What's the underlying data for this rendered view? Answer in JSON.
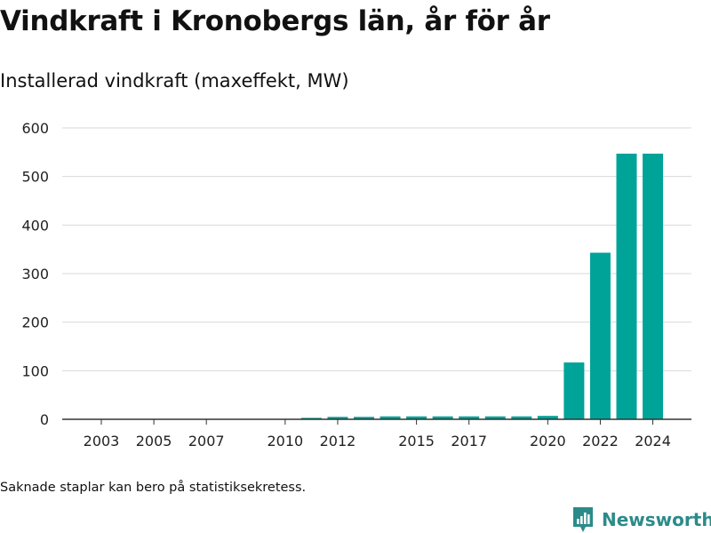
{
  "title": "Vindkraft i Kronobergs län, år för år",
  "subtitle": "Installerad vindkraft (maxeffekt, MW)",
  "note": "Saknade staplar kan bero på statistiksekretess.",
  "brand": {
    "name": "Newsworthy"
  },
  "colors": {
    "bar": "#00a398",
    "grid": "#d9d9d9",
    "axis": "#333333",
    "text": "#222222",
    "brand": "#2b8b8a"
  },
  "chart_data": {
    "type": "bar",
    "categories": [
      "2003",
      "2004",
      "2005",
      "2006",
      "2007",
      "2008",
      "2009",
      "2010",
      "2011",
      "2012",
      "2013",
      "2014",
      "2015",
      "2016",
      "2017",
      "2018",
      "2019",
      "2020",
      "2021",
      "2022",
      "2023",
      "2024"
    ],
    "values": [
      0,
      0,
      0,
      0,
      0,
      0,
      0,
      0,
      3,
      5,
      5,
      6,
      6,
      6,
      6,
      6,
      6,
      7,
      117,
      343,
      547,
      547
    ],
    "x_tick_labels": [
      "2003",
      "2005",
      "2007",
      "2010",
      "2012",
      "2015",
      "2017",
      "2020",
      "2022",
      "2024"
    ],
    "y_ticks": [
      0,
      100,
      200,
      300,
      400,
      500,
      600
    ],
    "ylim": [
      0,
      600
    ],
    "grid": true,
    "legend": "none",
    "title": "Vindkraft i Kronobergs län, år för år",
    "subtitle": "Installerad vindkraft (maxeffekt, MW)",
    "xlabel": "",
    "ylabel": ""
  }
}
